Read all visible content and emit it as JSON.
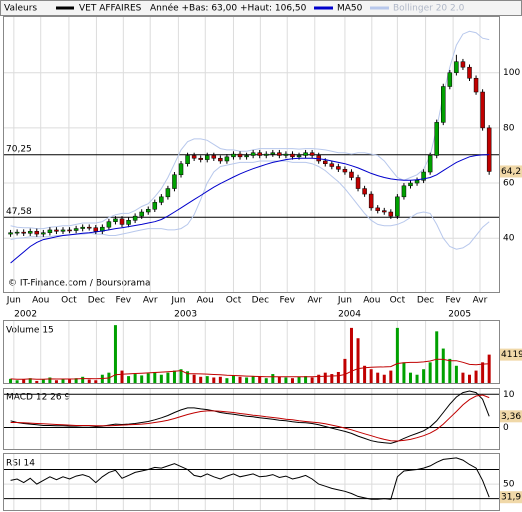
{
  "chart_data": [
    {
      "type": "candlestick",
      "header": {
        "label": "Valeurs",
        "name": "VET AFFAIRES",
        "range_text": "Année +Bas: 63,00 +Haut: 106,50"
      },
      "credit": "© IT-Finance.com / Boursorama",
      "name_color": "#000000",
      "up_color": "#00a000",
      "down_color": "#c00000",
      "open": [
        41.5,
        42,
        42.2,
        41.8,
        42.5,
        41.5,
        42,
        43,
        42.5,
        43,
        42.8,
        43.5,
        44,
        43.8,
        42.5,
        44,
        46,
        47,
        45,
        46.5,
        48,
        49.5,
        50.5,
        53,
        55,
        58,
        63,
        67,
        70,
        69,
        68.5,
        70,
        69,
        68,
        69.5,
        70.5,
        69.5,
        70,
        71,
        70,
        70.5,
        71,
        70,
        70.5,
        69.5,
        70,
        71,
        70,
        68,
        67,
        66,
        65,
        64,
        62,
        58,
        56,
        51,
        50,
        49.5,
        48,
        55,
        59,
        60,
        61,
        64,
        70,
        82,
        95,
        100,
        104,
        102,
        98,
        93,
        80
      ],
      "high": [
        43,
        43.2,
        43.2,
        43.5,
        43.5,
        43,
        44,
        44,
        44,
        44,
        44.5,
        45,
        45,
        44.8,
        45,
        47,
        48,
        48,
        47.5,
        49,
        50.5,
        51.5,
        54,
        56,
        59,
        64,
        68,
        71,
        71,
        70,
        71,
        71,
        70,
        70.5,
        71.5,
        71.5,
        71,
        72,
        72,
        71.5,
        72,
        72,
        71.5,
        71.5,
        71,
        72,
        72,
        71,
        69,
        68,
        67,
        66,
        65,
        63,
        59,
        57,
        52,
        51,
        50.5,
        56,
        60,
        61,
        62,
        65,
        71,
        83,
        96,
        101,
        106.5,
        105,
        103,
        99,
        94,
        81
      ],
      "low": [
        40.5,
        41,
        40.8,
        40.8,
        40.5,
        40.5,
        41,
        41.5,
        41.5,
        41.8,
        41.8,
        42.5,
        42.8,
        41.5,
        41.5,
        43,
        45,
        44,
        44,
        45.5,
        47,
        48.5,
        49.5,
        52,
        54,
        57,
        62,
        66,
        68,
        67.5,
        67.5,
        68,
        67,
        67,
        68.5,
        68.5,
        68.5,
        69,
        69,
        69,
        69.5,
        69,
        69,
        68.5,
        68.5,
        69,
        69,
        67,
        66,
        65,
        64,
        63,
        61,
        57,
        55,
        50,
        49,
        48.5,
        47,
        47,
        54,
        58,
        59,
        60,
        63,
        69,
        81,
        94,
        99,
        101,
        97,
        92,
        79,
        63
      ],
      "close": [
        42,
        42.2,
        41.8,
        42.5,
        41.5,
        42,
        43,
        42.5,
        43,
        42.8,
        43.5,
        44,
        43.8,
        42.5,
        44,
        46,
        47,
        45,
        46.5,
        48,
        49.5,
        50.5,
        53,
        55,
        58,
        63,
        67,
        70,
        69,
        68.5,
        70,
        69,
        68,
        69.5,
        70.5,
        69.5,
        70,
        71,
        70,
        70.5,
        71,
        70,
        70.5,
        69.5,
        70,
        71,
        70,
        68,
        67,
        66,
        65,
        64,
        62,
        58,
        56,
        51,
        50,
        49.5,
        48,
        55,
        59,
        60,
        61,
        64,
        70,
        82,
        95,
        100,
        104,
        102,
        98,
        93,
        80,
        64.2
      ],
      "lines": [
        {
          "name": "MA50",
          "color": "#0000cc",
          "values": [
            31,
            33,
            35,
            37,
            38.5,
            39.5,
            40,
            40.5,
            41,
            41.2,
            41.5,
            41.8,
            42,
            42.3,
            42.6,
            43,
            43.5,
            43.8,
            44.2,
            44.6,
            45,
            45.5,
            46,
            46.8,
            48,
            49.5,
            51,
            52.5,
            54,
            55.5,
            57,
            58.5,
            59.8,
            61,
            62.2,
            63.3,
            64.3,
            65.2,
            66,
            66.8,
            67.5,
            68,
            68.5,
            68.8,
            69,
            69,
            69,
            68.8,
            68.5,
            68,
            67.5,
            67,
            66.3,
            65.5,
            64.5,
            63.5,
            62.7,
            62,
            61.5,
            61.2,
            61,
            61,
            61.2,
            61.5,
            62,
            63,
            64.5,
            66,
            67.5,
            68.5,
            69.5,
            70,
            70.2,
            70.3
          ]
        }
      ],
      "bands": {
        "name": "Bollinger 20 2.0",
        "color": "#b8c8ec",
        "upper": [
          44.5,
          44,
          43.8,
          43.8,
          43.5,
          43.5,
          44,
          44.2,
          44.5,
          44.5,
          45,
          45.5,
          45.5,
          45.5,
          46,
          47.5,
          48.5,
          49,
          49,
          50,
          51.5,
          52.5,
          55,
          58,
          62,
          67,
          72,
          75,
          76,
          76,
          75.5,
          74,
          72.5,
          72,
          72,
          71.5,
          71.5,
          72,
          72.5,
          72.5,
          72.5,
          72.5,
          72.5,
          72.5,
          72.3,
          72.5,
          72.5,
          72.3,
          72,
          71.5,
          71,
          71,
          70.5,
          71,
          71,
          70.5,
          70,
          68,
          65,
          62,
          61,
          62,
          63,
          65,
          70,
          80,
          92,
          102,
          110,
          114,
          115,
          114.5,
          112.5,
          112
        ],
        "lower": [
          39.5,
          40,
          40.2,
          40.5,
          40.5,
          40.5,
          40.5,
          41,
          41,
          41.3,
          41.5,
          41.5,
          41.8,
          41.5,
          41.5,
          41,
          41,
          41.5,
          42,
          42.5,
          43,
          43.5,
          43.5,
          43.5,
          43,
          43,
          43.5,
          45,
          48.5,
          54,
          60,
          64,
          66,
          66.5,
          67,
          67.5,
          67.5,
          67.5,
          68,
          68,
          68,
          68,
          68,
          67.5,
          67.5,
          67.5,
          67,
          66,
          64.5,
          62.5,
          60.5,
          58,
          55,
          52,
          49,
          46.5,
          45,
          44.5,
          44.5,
          45,
          46,
          47.5,
          49,
          49.5,
          49,
          45,
          40,
          37,
          36,
          36.5,
          38,
          41,
          44,
          46
        ]
      },
      "hlines": [
        {
          "value": 70.25,
          "label": "70,25"
        },
        {
          "value": 47.58,
          "label": "47,58"
        }
      ],
      "hline_color": "#000000",
      "last_label": {
        "value": 64.2,
        "label": "64,2"
      },
      "xlim": [
        -1,
        74.5
      ],
      "xticks": [
        {
          "value": 0.5,
          "label": "Jun"
        },
        {
          "value": 4.6,
          "label": "Aou"
        },
        {
          "value": 8.9,
          "label": "Oct"
        },
        {
          "value": 13.1,
          "label": "Dec"
        },
        {
          "value": 17.2,
          "label": "Fev"
        },
        {
          "value": 21.3,
          "label": "Avr"
        },
        {
          "value": 25.6,
          "label": "Jun"
        },
        {
          "value": 29.7,
          "label": "Aou"
        },
        {
          "value": 34,
          "label": "Oct"
        },
        {
          "value": 38.1,
          "label": "Dec"
        },
        {
          "value": 42.2,
          "label": "Fev"
        },
        {
          "value": 46.4,
          "label": "Avr"
        },
        {
          "value": 51,
          "label": "Jun"
        },
        {
          "value": 55.1,
          "label": "Aou"
        },
        {
          "value": 59,
          "label": "Oct"
        },
        {
          "value": 63.3,
          "label": "Dec"
        },
        {
          "value": 67.5,
          "label": "Fev"
        },
        {
          "value": 71.6,
          "label": "Avr"
        }
      ],
      "year_ticks": [
        {
          "value": 2.3,
          "label": "2002"
        },
        {
          "value": 26.7,
          "label": "2003"
        },
        {
          "value": 51.7,
          "label": "2004"
        },
        {
          "value": 68.5,
          "label": "2005"
        }
      ],
      "ylim": [
        20.5,
        120.2
      ],
      "yticks": [
        40,
        60,
        80,
        100
      ],
      "grid": true
    },
    {
      "type": "bar",
      "title": "Volume 15",
      "values": [
        600,
        400,
        500,
        700,
        300,
        500,
        800,
        400,
        600,
        500,
        700,
        900,
        500,
        400,
        1200,
        1500,
        8400,
        1800,
        1000,
        1300,
        1100,
        1400,
        1600,
        1200,
        1500,
        1800,
        2000,
        1700,
        1200,
        900,
        1000,
        800,
        900,
        700,
        1100,
        900,
        800,
        1000,
        900,
        700,
        1300,
        900,
        800,
        700,
        900,
        1000,
        800,
        1200,
        1500,
        1300,
        1600,
        3500,
        8000,
        6500,
        2500,
        2000,
        1500,
        1200,
        1800,
        8000,
        3000,
        1500,
        1200,
        2000,
        3000,
        7500,
        5000,
        3500,
        2500,
        1500,
        1200,
        1800,
        3000,
        4119
      ],
      "average": {
        "color": "#c00000",
        "values": [
          600,
          550,
          550,
          600,
          550,
          550,
          600,
          580,
          580,
          580,
          600,
          640,
          640,
          620,
          660,
          720,
          1200,
          1280,
          1320,
          1380,
          1420,
          1470,
          1530,
          1580,
          1640,
          1720,
          1800,
          1350,
          1340,
          1320,
          1290,
          1240,
          1190,
          1120,
          1090,
          1050,
          1000,
          970,
          940,
          910,
          920,
          920,
          900,
          900,
          910,
          920,
          920,
          940,
          980,
          1010,
          1060,
          1240,
          1710,
          2090,
          2210,
          2280,
          2320,
          2330,
          2380,
          2830,
          2950,
          2990,
          2990,
          3060,
          3190,
          3460,
          3420,
          3220,
          3240,
          3000,
          2700,
          2650,
          2750,
          2800
        ]
      },
      "ylim": [
        0,
        9000
      ]
    },
    {
      "type": "line",
      "title": "MACD 12 26 9",
      "series": [
        {
          "color": "#000000",
          "values": [
            2,
            1.5,
            1.2,
            1,
            0.8,
            0.6,
            0.6,
            0.5,
            0.5,
            0.4,
            0.4,
            0.5,
            0.5,
            0.3,
            0.4,
            0.7,
            1,
            0.9,
            1,
            1.2,
            1.5,
            1.8,
            2.3,
            2.9,
            3.6,
            4.5,
            5.3,
            5.9,
            5.9,
            5.6,
            5.4,
            5,
            4.5,
            4.2,
            4,
            3.7,
            3.4,
            3.2,
            2.9,
            2.7,
            2.5,
            2.2,
            2,
            1.7,
            1.5,
            1.4,
            1.2,
            0.8,
            0.3,
            -0.2,
            -0.7,
            -1.2,
            -1.8,
            -2.6,
            -3.3,
            -4,
            -4.4,
            -4.6,
            -4.8,
            -4.2,
            -3.3,
            -2.5,
            -1.8,
            -1,
            0.2,
            2,
            4.5,
            7,
            9.2,
            10.5,
            11,
            10.5,
            8.5,
            3.36
          ]
        },
        {
          "color": "#c00000",
          "values": [
            1.5,
            1.5,
            1.4,
            1.3,
            1.2,
            1.1,
            1,
            0.9,
            0.8,
            0.7,
            0.6,
            0.6,
            0.6,
            0.5,
            0.5,
            0.5,
            0.6,
            0.7,
            0.8,
            0.9,
            1,
            1.2,
            1.5,
            1.8,
            2.2,
            2.7,
            3.3,
            3.9,
            4.4,
            4.8,
            5,
            5,
            4.9,
            4.7,
            4.5,
            4.2,
            4,
            3.7,
            3.5,
            3.2,
            3,
            2.8,
            2.5,
            2.3,
            2,
            1.8,
            1.6,
            1.4,
            1.1,
            0.7,
            0.3,
            -0.2,
            -0.7,
            -1.3,
            -1.9,
            -2.5,
            -3.1,
            -3.6,
            -4,
            -4.1,
            -3.9,
            -3.6,
            -3.1,
            -2.5,
            -1.7,
            -0.6,
            1,
            2.9,
            4.8,
            6.8,
            8.4,
            9.5,
            9.8,
            9
          ]
        }
      ],
      "last_label": {
        "value": 3.36,
        "label": "3,36"
      },
      "ylim": [
        -6.5,
        11.6
      ],
      "yticks": [
        0,
        10
      ]
    },
    {
      "type": "line",
      "title": "RSI 14",
      "series": [
        {
          "color": "#000000",
          "values": [
            55,
            57,
            52,
            58,
            50,
            55,
            60,
            56,
            60,
            57,
            61,
            63,
            60,
            52,
            60,
            66,
            69,
            58,
            62,
            66,
            68,
            70,
            73,
            72,
            75,
            78,
            74,
            70,
            62,
            60,
            64,
            60,
            57,
            61,
            64,
            60,
            62,
            64,
            60,
            61,
            63,
            59,
            61,
            57,
            59,
            62,
            57,
            50,
            47,
            44,
            42,
            40,
            37,
            33,
            31,
            29,
            29,
            30,
            29,
            60,
            68,
            69,
            70,
            72,
            75,
            80,
            84,
            85,
            86,
            83,
            77,
            72,
            55,
            31.9
          ]
        }
      ],
      "levels": [
        30,
        70
      ],
      "last_label": {
        "value": 31.9,
        "label": "31,9"
      },
      "ylim": [
        14.3,
        91.4
      ],
      "yticks": [
        50
      ]
    }
  ]
}
